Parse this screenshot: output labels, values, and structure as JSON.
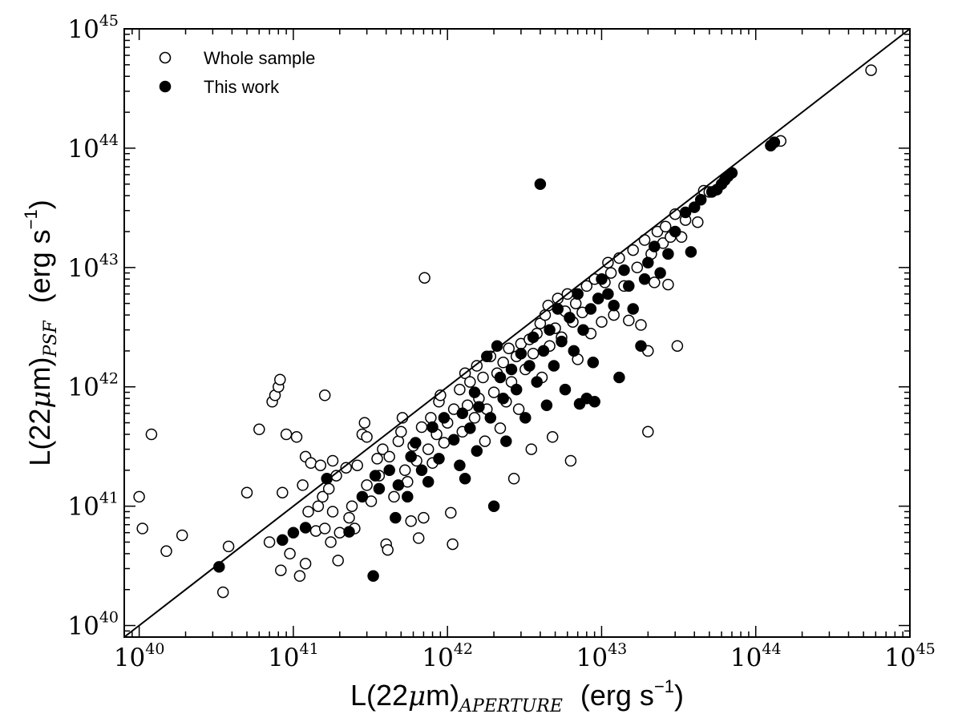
{
  "chart_data": {
    "type": "scatter",
    "xscale": "log",
    "yscale": "log",
    "xlim": [
      8e+39,
      1e+45
    ],
    "ylim": [
      8e+39,
      1e+45
    ],
    "xlabel": {
      "main": "L(22",
      "mu": "μ",
      "m": "m)",
      "sub": "APERTURE",
      "unit": "(erg s",
      "exp": "−1",
      "close": ")"
    },
    "ylabel": {
      "main": "L(22",
      "mu": "μ",
      "m": "m)",
      "sub": "PSF",
      "unit": "(erg s",
      "exp": "−1",
      "close": ")"
    },
    "xticks": [
      {
        "value": 1e+40,
        "base": "10",
        "exp": "40"
      },
      {
        "value": 1e+41,
        "base": "10",
        "exp": "41"
      },
      {
        "value": 1e+42,
        "base": "10",
        "exp": "42"
      },
      {
        "value": 1e+43,
        "base": "10",
        "exp": "43"
      },
      {
        "value": 1e+44,
        "base": "10",
        "exp": "44"
      },
      {
        "value": 1e+45,
        "base": "10",
        "exp": "45"
      }
    ],
    "yticks": [
      {
        "value": 1e+40,
        "base": "10",
        "exp": "40"
      },
      {
        "value": 1e+41,
        "base": "10",
        "exp": "41"
      },
      {
        "value": 1e+42,
        "base": "10",
        "exp": "42"
      },
      {
        "value": 1e+43,
        "base": "10",
        "exp": "43"
      },
      {
        "value": 1e+44,
        "base": "10",
        "exp": "44"
      },
      {
        "value": 1e+45,
        "base": "10",
        "exp": "45"
      }
    ],
    "reference_line": "y = x",
    "grid": false,
    "legend_position": "top-left",
    "series": [
      {
        "name": "Whole sample",
        "marker": "open-circle",
        "color": "#000000",
        "points": [
          [
            1e+40,
            1.2e+41
          ],
          [
            1.05e+40,
            6.5e+40
          ],
          [
            1.2e+40,
            4e+41
          ],
          [
            1.5e+40,
            4.2e+40
          ],
          [
            1.9e+40,
            5.7e+40
          ],
          [
            3.5e+40,
            1.9e+40
          ],
          [
            3.8e+40,
            4.6e+40
          ],
          [
            5e+40,
            1.3e+41
          ],
          [
            6e+40,
            4.4e+41
          ],
          [
            7e+40,
            5e+40
          ],
          [
            7.3e+40,
            7.5e+41
          ],
          [
            7.6e+40,
            8.5e+41
          ],
          [
            8e+40,
            1e+42
          ],
          [
            8.2e+40,
            1.15e+42
          ],
          [
            8.3e+40,
            2.9e+40
          ],
          [
            8.5e+40,
            1.3e+41
          ],
          [
            9e+40,
            4e+41
          ],
          [
            9.5e+40,
            4e+40
          ],
          [
            1.05e+41,
            3.8e+41
          ],
          [
            1.1e+41,
            2.6e+40
          ],
          [
            1.15e+41,
            1.5e+41
          ],
          [
            1.2e+41,
            2.6e+41
          ],
          [
            1.2e+41,
            3.3e+40
          ],
          [
            1.25e+41,
            9e+40
          ],
          [
            1.3e+41,
            2.3e+41
          ],
          [
            1.4e+41,
            6.2e+40
          ],
          [
            1.45e+41,
            1e+41
          ],
          [
            1.5e+41,
            2.2e+41
          ],
          [
            1.55e+41,
            1.2e+41
          ],
          [
            1.6e+41,
            8.5e+41
          ],
          [
            1.6e+41,
            6.5e+40
          ],
          [
            1.7e+41,
            1.4e+41
          ],
          [
            1.75e+41,
            5e+40
          ],
          [
            1.8e+41,
            2.4e+41
          ],
          [
            1.8e+41,
            9e+40
          ],
          [
            1.9e+41,
            1.8e+41
          ],
          [
            1.95e+41,
            3.5e+40
          ],
          [
            2e+41,
            6e+40
          ],
          [
            2.2e+41,
            2.1e+41
          ],
          [
            2.3e+41,
            8e+40
          ],
          [
            2.4e+41,
            1e+41
          ],
          [
            2.5e+41,
            6.5e+40
          ],
          [
            2.6e+41,
            2.2e+41
          ],
          [
            2.8e+41,
            4e+41
          ],
          [
            2.9e+41,
            5e+41
          ],
          [
            3e+41,
            3.8e+41
          ],
          [
            3e+41,
            1.5e+41
          ],
          [
            3.2e+41,
            1.1e+41
          ],
          [
            3.5e+41,
            2.5e+41
          ],
          [
            3.6e+41,
            1.8e+41
          ],
          [
            3.8e+41,
            3e+41
          ],
          [
            4e+41,
            4.8e+40
          ],
          [
            4.1e+41,
            4.3e+40
          ],
          [
            4.2e+41,
            2.6e+41
          ],
          [
            4.5e+41,
            1.2e+41
          ],
          [
            4.8e+41,
            3.5e+41
          ],
          [
            5e+41,
            4.2e+41
          ],
          [
            5.1e+41,
            5.5e+41
          ],
          [
            5.3e+41,
            2e+41
          ],
          [
            5.5e+41,
            1.6e+41
          ],
          [
            5.8e+41,
            7.5e+40
          ],
          [
            6e+41,
            3.2e+41
          ],
          [
            6.3e+41,
            2.4e+41
          ],
          [
            6.5e+41,
            5.4e+40
          ],
          [
            6.8e+41,
            4.6e+41
          ],
          [
            7e+41,
            8e+40
          ],
          [
            7.1e+41,
            8.2e+42
          ],
          [
            7.5e+41,
            3e+41
          ],
          [
            7.8e+41,
            5.5e+41
          ],
          [
            8e+41,
            2.3e+41
          ],
          [
            8.5e+41,
            4e+41
          ],
          [
            8.8e+41,
            7.5e+41
          ],
          [
            9e+41,
            8.5e+41
          ],
          [
            9.5e+41,
            3.4e+41
          ],
          [
            1e+42,
            5e+41
          ],
          [
            1.05e+42,
            8.8e+40
          ],
          [
            1.08e+42,
            4.8e+40
          ],
          [
            1.1e+42,
            6.5e+41
          ],
          [
            1.2e+42,
            9.5e+41
          ],
          [
            1.25e+42,
            4.2e+41
          ],
          [
            1.3e+42,
            1.3e+42
          ],
          [
            1.35e+42,
            7e+41
          ],
          [
            1.4e+42,
            1.1e+42
          ],
          [
            1.5e+42,
            5.5e+41
          ],
          [
            1.55e+42,
            1.5e+42
          ],
          [
            1.6e+42,
            8e+41
          ],
          [
            1.7e+42,
            1.2e+42
          ],
          [
            1.75e+42,
            3.5e+41
          ],
          [
            1.8e+42,
            6.5e+41
          ],
          [
            1.9e+42,
            1.8e+42
          ],
          [
            2e+42,
            9e+41
          ],
          [
            2.1e+42,
            1.3e+42
          ],
          [
            2.2e+42,
            4.5e+41
          ],
          [
            2.3e+42,
            1.6e+42
          ],
          [
            2.4e+42,
            7.5e+41
          ],
          [
            2.5e+42,
            2.1e+42
          ],
          [
            2.6e+42,
            1.1e+42
          ],
          [
            2.7e+42,
            1.7e+41
          ],
          [
            2.8e+42,
            1.8e+42
          ],
          [
            2.9e+42,
            6.5e+41
          ],
          [
            3e+42,
            2.3e+42
          ],
          [
            3.2e+42,
            1.4e+42
          ],
          [
            3.4e+42,
            2.5e+42
          ],
          [
            3.5e+42,
            3e+41
          ],
          [
            3.6e+42,
            1.9e+42
          ],
          [
            3.8e+42,
            2.8e+42
          ],
          [
            4e+42,
            3.4e+42
          ],
          [
            4.1e+42,
            1.2e+42
          ],
          [
            4.3e+42,
            4e+42
          ],
          [
            4.5e+42,
            4.8e+42
          ],
          [
            4.6e+42,
            2.2e+42
          ],
          [
            4.8e+42,
            3.8e+41
          ],
          [
            5e+42,
            3.1e+42
          ],
          [
            5.2e+42,
            5.5e+42
          ],
          [
            5.5e+42,
            2.6e+42
          ],
          [
            5.8e+42,
            4.3e+42
          ],
          [
            6e+42,
            6e+42
          ],
          [
            6.3e+42,
            2.4e+41
          ],
          [
            6.5e+42,
            3.5e+42
          ],
          [
            6.8e+42,
            5e+42
          ],
          [
            7e+42,
            1.7e+42
          ],
          [
            7.5e+42,
            4.2e+42
          ],
          [
            8e+42,
            7e+42
          ],
          [
            8.5e+42,
            2.8e+42
          ],
          [
            9e+42,
            8e+42
          ],
          [
            9.5e+42,
            5.5e+42
          ],
          [
            1e+43,
            3.5e+42
          ],
          [
            1.05e+43,
            7.5e+42
          ],
          [
            1.1e+43,
            1.1e+43
          ],
          [
            1.15e+43,
            9e+42
          ],
          [
            1.2e+43,
            4e+42
          ],
          [
            1.3e+43,
            1.2e+43
          ],
          [
            1.4e+43,
            7e+42
          ],
          [
            1.5e+43,
            3.6e+42
          ],
          [
            1.6e+43,
            1.4e+43
          ],
          [
            1.7e+43,
            1e+43
          ],
          [
            1.8e+43,
            3.3e+42
          ],
          [
            1.9e+43,
            1.7e+43
          ],
          [
            2e+43,
            2e+42
          ],
          [
            2e+43,
            4.2e+41
          ],
          [
            2.1e+43,
            1.3e+43
          ],
          [
            2.2e+43,
            7.5e+42
          ],
          [
            2.3e+43,
            2e+43
          ],
          [
            2.5e+43,
            1.6e+43
          ],
          [
            2.6e+43,
            2.2e+43
          ],
          [
            2.7e+43,
            7.2e+42
          ],
          [
            2.8e+43,
            1.8e+43
          ],
          [
            3e+43,
            2.8e+43
          ],
          [
            3.1e+43,
            2.2e+42
          ],
          [
            3.3e+43,
            1.8e+43
          ],
          [
            3.5e+43,
            2.5e+43
          ],
          [
            4.2e+43,
            2.4e+43
          ],
          [
            4.6e+43,
            4.4e+43
          ],
          [
            5e+43,
            4.3e+43
          ],
          [
            1.45e+44,
            1.15e+44
          ],
          [
            5.6e+44,
            4.5e+44
          ]
        ]
      },
      {
        "name": "This work",
        "marker": "filled-circle",
        "color": "#000000",
        "points": [
          [
            3.3e+40,
            3.1e+40
          ],
          [
            8.5e+40,
            5.2e+40
          ],
          [
            1e+41,
            6e+40
          ],
          [
            1.2e+41,
            6.6e+40
          ],
          [
            1.65e+41,
            1.7e+41
          ],
          [
            2.3e+41,
            6.1e+40
          ],
          [
            2.8e+41,
            1.2e+41
          ],
          [
            3.3e+41,
            2.6e+40
          ],
          [
            3.4e+41,
            1.8e+41
          ],
          [
            3.6e+41,
            1.4e+41
          ],
          [
            4.2e+41,
            2e+41
          ],
          [
            4.6e+41,
            8e+40
          ],
          [
            4.8e+41,
            1.5e+41
          ],
          [
            5.5e+41,
            1.2e+41
          ],
          [
            5.8e+41,
            2.6e+41
          ],
          [
            6.2e+41,
            3.4e+41
          ],
          [
            6.8e+41,
            2e+41
          ],
          [
            7.5e+41,
            1.6e+41
          ],
          [
            8e+41,
            4.6e+41
          ],
          [
            8.8e+41,
            2.5e+41
          ],
          [
            9.5e+41,
            5.5e+41
          ],
          [
            1.1e+42,
            3.6e+41
          ],
          [
            1.2e+42,
            2.2e+41
          ],
          [
            1.25e+42,
            6e+41
          ],
          [
            1.3e+42,
            1.7e+41
          ],
          [
            1.4e+42,
            4.5e+41
          ],
          [
            1.5e+42,
            9e+41
          ],
          [
            1.55e+42,
            2.9e+41
          ],
          [
            1.6e+42,
            6.8e+41
          ],
          [
            1.8e+42,
            1.8e+42
          ],
          [
            1.9e+42,
            5.5e+41
          ],
          [
            2e+42,
            1e+41
          ],
          [
            2.1e+42,
            2.2e+42
          ],
          [
            2.2e+42,
            1.2e+42
          ],
          [
            2.3e+42,
            8e+41
          ],
          [
            2.4e+42,
            3.5e+41
          ],
          [
            2.6e+42,
            1.4e+42
          ],
          [
            2.8e+42,
            9.5e+41
          ],
          [
            3e+42,
            1.9e+42
          ],
          [
            3.2e+42,
            5.5e+41
          ],
          [
            3.4e+42,
            1.5e+42
          ],
          [
            3.6e+42,
            2.6e+42
          ],
          [
            3.8e+42,
            1.1e+42
          ],
          [
            4e+42,
            5e+43
          ],
          [
            4.2e+42,
            2e+42
          ],
          [
            4.4e+42,
            7e+41
          ],
          [
            4.6e+42,
            3e+42
          ],
          [
            4.9e+42,
            1.5e+42
          ],
          [
            5.2e+42,
            4.5e+42
          ],
          [
            5.5e+42,
            2.4e+42
          ],
          [
            5.8e+42,
            9.5e+41
          ],
          [
            6.2e+42,
            3.8e+42
          ],
          [
            6.6e+42,
            2e+42
          ],
          [
            7e+42,
            6e+42
          ],
          [
            7.2e+42,
            7.2e+41
          ],
          [
            7.6e+42,
            3e+42
          ],
          [
            8e+42,
            8e+41
          ],
          [
            8.5e+42,
            4.5e+42
          ],
          [
            8.8e+42,
            1.6e+42
          ],
          [
            9e+42,
            7.5e+41
          ],
          [
            9.5e+42,
            5.5e+42
          ],
          [
            1e+43,
            8e+42
          ],
          [
            1.1e+43,
            6e+42
          ],
          [
            1.2e+43,
            4.8e+42
          ],
          [
            1.3e+43,
            1.2e+42
          ],
          [
            1.4e+43,
            9.5e+42
          ],
          [
            1.5e+43,
            7e+42
          ],
          [
            1.6e+43,
            4.5e+42
          ],
          [
            1.8e+43,
            2.2e+42
          ],
          [
            1.9e+43,
            8e+42
          ],
          [
            2e+43,
            1.1e+43
          ],
          [
            2.2e+43,
            1.5e+43
          ],
          [
            2.4e+43,
            9e+42
          ],
          [
            2.7e+43,
            1.3e+43
          ],
          [
            3e+43,
            2e+43
          ],
          [
            3.5e+43,
            2.9e+43
          ],
          [
            3.8e+43,
            1.35e+43
          ],
          [
            4e+43,
            3.2e+43
          ],
          [
            4.4e+43,
            3.7e+43
          ],
          [
            5.2e+43,
            4.3e+43
          ],
          [
            5.6e+43,
            4.5e+43
          ],
          [
            6e+43,
            5e+43
          ],
          [
            6.3e+43,
            5.4e+43
          ],
          [
            6.6e+43,
            5.8e+43
          ],
          [
            7e+43,
            6.2e+43
          ],
          [
            1.25e+44,
            1.05e+44
          ],
          [
            1.32e+44,
            1.12e+44
          ]
        ]
      }
    ]
  }
}
